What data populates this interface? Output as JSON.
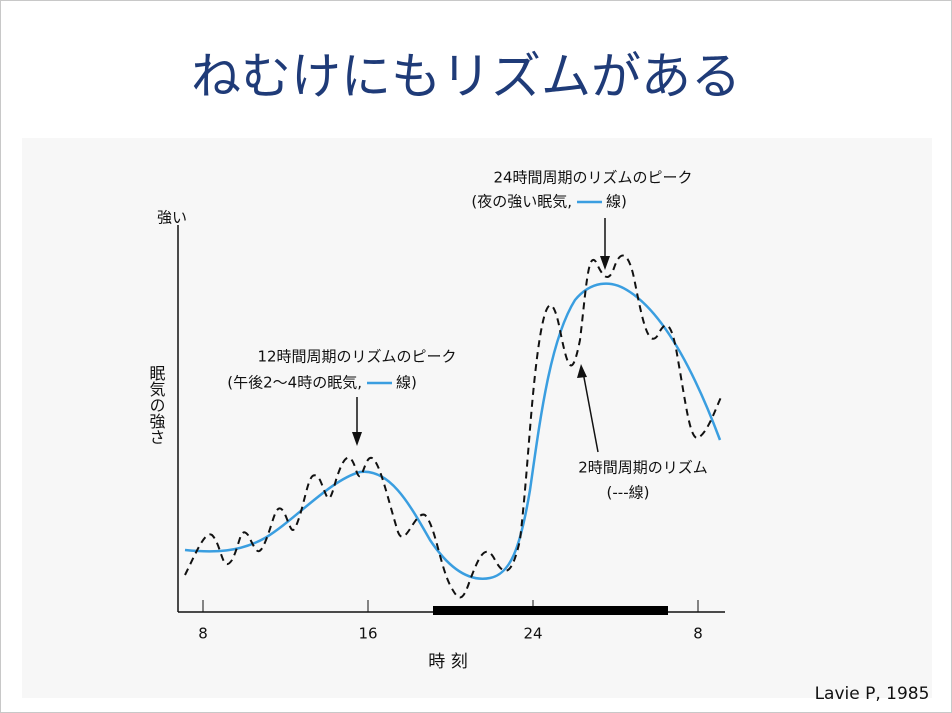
{
  "slide": {
    "title": "ねむけにもリズムがある",
    "citation": "Lavie P, 1985"
  },
  "figure": {
    "y_axis_top": "強い",
    "y_axis_label": "眠気の強さ",
    "x_axis_label": "時 刻",
    "x_ticks": [
      "8",
      "16",
      "24",
      "8"
    ],
    "annotations": [
      {
        "line1": "24時間周期のリズムのピーク",
        "line2_before": "(夜の強い眠気,",
        "line2_after": "線)"
      },
      {
        "line1": "12時間周期のリズムのピーク",
        "line2_before": "(午後2〜4時の眠気,",
        "line2_after": "線)"
      },
      {
        "line1": "2時間周期のリズム",
        "line2": "(---線)"
      }
    ]
  }
}
